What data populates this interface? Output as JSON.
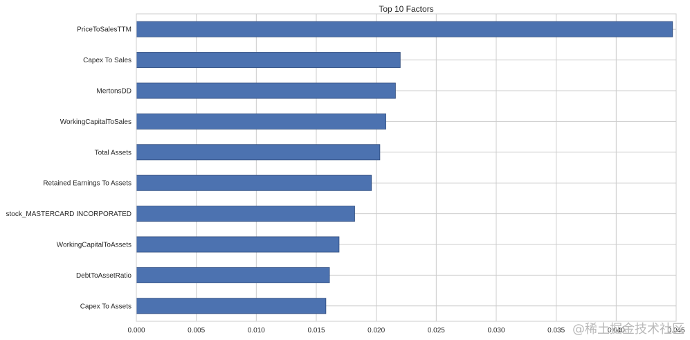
{
  "chart_data": {
    "type": "bar",
    "orientation": "horizontal",
    "title": "Top 10 Factors",
    "xlabel": "",
    "ylabel": "",
    "categories": [
      "PriceToSalesTTM",
      "Capex To Sales",
      "MertonsDD",
      "WorkingCapitalToSales",
      "Total Assets",
      "Retained Earnings To Assets",
      "stock_MASTERCARD INCORPORATED",
      "WorkingCapitalToAssets",
      "DebtToAssetRatio",
      "Capex To Assets"
    ],
    "values": [
      0.0447,
      0.022,
      0.0216,
      0.0208,
      0.0203,
      0.0196,
      0.0182,
      0.0169,
      0.0161,
      0.0158
    ],
    "xlim": [
      0.0,
      0.045
    ],
    "xticks": [
      "0.000",
      "0.005",
      "0.010",
      "0.015",
      "0.020",
      "0.025",
      "0.030",
      "0.035",
      "0.040",
      "0.045"
    ],
    "xtick_values": [
      0,
      0.005,
      0.01,
      0.015,
      0.02,
      0.025,
      0.03,
      0.035,
      0.04,
      0.045
    ],
    "grid": true,
    "legend": "none",
    "bar_color": "#4c72b0",
    "bar_edge_color": "#2f4b7c",
    "grid_color": "#cccccc"
  },
  "watermark": "@稀土掘金技术社区"
}
